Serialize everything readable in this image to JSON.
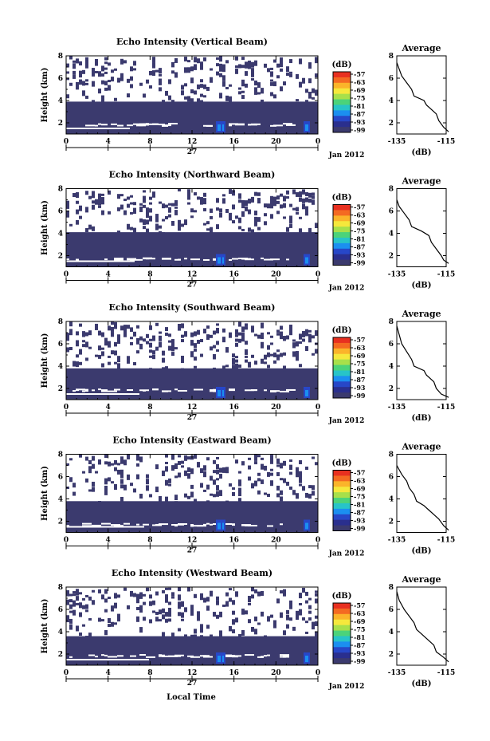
{
  "chart_data": {
    "type": "heatmap",
    "time_ticks": [
      "0",
      "4",
      "8",
      "12",
      "16",
      "20",
      "0"
    ],
    "day_label": "27",
    "month_label": "Jan 2012",
    "xlabel": "Local Time",
    "ylabel": "Height (km)",
    "height_ticks": [
      "2",
      "4",
      "6",
      "8"
    ],
    "colorbar": {
      "unit": "(dB)",
      "labels": [
        "-57",
        "-63",
        "-69",
        "-75",
        "-81",
        "-87",
        "-93",
        "-99"
      ],
      "colors": [
        "#e83020",
        "#f46a22",
        "#fbb42a",
        "#f6e83c",
        "#a8e04a",
        "#4bd37a",
        "#27c4c8",
        "#1b8ff0",
        "#2747c8",
        "#2a2f8e",
        "#3b3a6e"
      ]
    },
    "average": {
      "title": "Average",
      "xlabel": "(dB)",
      "xticks": [
        "-135",
        "-115"
      ],
      "yticks": [
        "2",
        "4",
        "6",
        "8"
      ],
      "xlim": [
        -135,
        -115
      ],
      "ylim": [
        1,
        8
      ]
    },
    "panels": [
      {
        "title": "Echo Intensity (Vertical Beam)",
        "band_top": 3.9,
        "profile": [
          [
            -114,
            1.2
          ],
          [
            -116,
            1.6
          ],
          [
            -118,
            2.2
          ],
          [
            -119,
            2.8
          ],
          [
            -121,
            3.2
          ],
          [
            -123,
            3.6
          ],
          [
            -124,
            4.0
          ],
          [
            -128,
            4.4
          ],
          [
            -129,
            5.0
          ],
          [
            -131,
            5.6
          ],
          [
            -133,
            6.2
          ],
          [
            -134,
            6.8
          ],
          [
            -135,
            7.4
          ]
        ]
      },
      {
        "title": "Echo Intensity (Northward Beam)",
        "band_top": 4.1,
        "profile": [
          [
            -114,
            1.3
          ],
          [
            -116,
            1.6
          ],
          [
            -117,
            2.0
          ],
          [
            -119,
            2.6
          ],
          [
            -121,
            3.2
          ],
          [
            -122,
            3.8
          ],
          [
            -125,
            4.2
          ],
          [
            -129,
            4.6
          ],
          [
            -130,
            5.2
          ],
          [
            -132,
            5.8
          ],
          [
            -134,
            6.4
          ],
          [
            -135,
            7.0
          ]
        ]
      },
      {
        "title": "Echo Intensity (Southward Beam)",
        "band_top": 3.8,
        "profile": [
          [
            -114,
            1.2
          ],
          [
            -117,
            1.5
          ],
          [
            -119,
            2.0
          ],
          [
            -120,
            2.6
          ],
          [
            -123,
            3.2
          ],
          [
            -124,
            3.6
          ],
          [
            -128,
            4.0
          ],
          [
            -129,
            4.6
          ],
          [
            -131,
            5.3
          ],
          [
            -133,
            6.0
          ],
          [
            -134,
            6.8
          ],
          [
            -135,
            7.6
          ]
        ]
      },
      {
        "title": "Echo Intensity (Eastward Beam)",
        "band_top": 3.8,
        "profile": [
          [
            -114,
            1.2
          ],
          [
            -116,
            1.6
          ],
          [
            -118,
            2.2
          ],
          [
            -120,
            2.6
          ],
          [
            -122,
            3.0
          ],
          [
            -124,
            3.4
          ],
          [
            -127,
            3.8
          ],
          [
            -128,
            4.4
          ],
          [
            -130,
            5.0
          ],
          [
            -131,
            5.6
          ],
          [
            -133,
            6.2
          ],
          [
            -135,
            7.0
          ]
        ]
      },
      {
        "title": "Echo Intensity (Westward Beam)",
        "band_top": 3.6,
        "profile": [
          [
            -114,
            1.3
          ],
          [
            -116,
            1.7
          ],
          [
            -119,
            2.2
          ],
          [
            -120,
            2.8
          ],
          [
            -122,
            3.2
          ],
          [
            -124,
            3.6
          ],
          [
            -127,
            4.2
          ],
          [
            -128,
            4.8
          ],
          [
            -130,
            5.4
          ],
          [
            -132,
            6.0
          ],
          [
            -134,
            6.8
          ],
          [
            -135,
            7.6
          ]
        ]
      }
    ]
  }
}
